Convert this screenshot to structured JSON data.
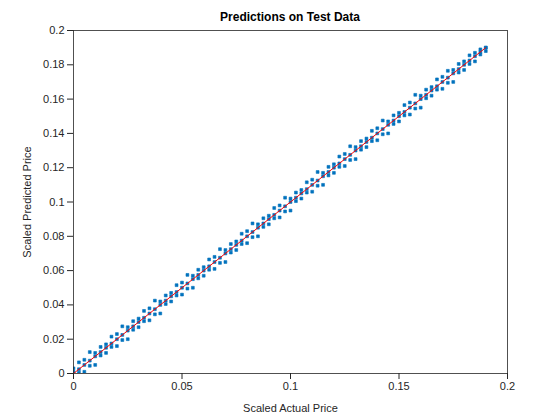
{
  "chart_data": {
    "type": "scatter",
    "title": "Predictions on Test Data",
    "xlabel": "Scaled Actual Price",
    "ylabel": "Scaled Predicted Price",
    "xlim": [
      0,
      0.2
    ],
    "ylim": [
      0,
      0.2
    ],
    "xticks": [
      0,
      0.05,
      0.1,
      0.15,
      0.2
    ],
    "yticks": [
      0,
      0.02,
      0.04,
      0.06,
      0.08,
      0.1,
      0.12,
      0.14,
      0.16,
      0.18,
      0.2
    ],
    "grid": false,
    "series": [
      {
        "type": "scatter",
        "color": "#0072bd",
        "marker": "square",
        "x": [
          0,
          0.0025,
          0.005,
          0.0075,
          0.01,
          0.0125,
          0.015,
          0.0175,
          0.02,
          0.0225,
          0.025,
          0.0275,
          0.03,
          0.0325,
          0.035,
          0.0375,
          0.04,
          0.0425,
          0.045,
          0.0475,
          0.05,
          0.0525,
          0.055,
          0.0575,
          0.06,
          0.0625,
          0.065,
          0.0675,
          0.07,
          0.0725,
          0.075,
          0.0775,
          0.08,
          0.0825,
          0.085,
          0.0875,
          0.09,
          0.0925,
          0.095,
          0.0975,
          0.1,
          0.1025,
          0.105,
          0.1075,
          0.11,
          0.1125,
          0.115,
          0.1175,
          0.12,
          0.1225,
          0.125,
          0.1275,
          0.13,
          0.1325,
          0.135,
          0.1375,
          0.14,
          0.1425,
          0.145,
          0.1475,
          0.15,
          0.1525,
          0.155,
          0.1575,
          0.16,
          0.1625,
          0.165,
          0.1675,
          0.17,
          0.1725,
          0.175,
          0.1775,
          0.18,
          0.1825,
          0.185,
          0.1875,
          0.19,
          0,
          0.0025,
          0.005,
          0.0075,
          0.01,
          0.0125,
          0.015,
          0.0175,
          0.02,
          0.0225,
          0.025,
          0.0275,
          0.03,
          0.0325,
          0.035,
          0.0375,
          0.04,
          0.0425,
          0.045,
          0.0475,
          0.05,
          0.0525,
          0.055,
          0.0575,
          0.06,
          0.0625,
          0.065,
          0.0675,
          0.07,
          0.0725,
          0.075,
          0.0775,
          0.08,
          0.0825,
          0.085,
          0.0875,
          0.09,
          0.0925,
          0.095,
          0.0975,
          0.1,
          0.1025,
          0.105,
          0.1075,
          0.11,
          0.1125,
          0.115,
          0.1175,
          0.12,
          0.1225,
          0.125,
          0.1275,
          0.13,
          0.1325,
          0.135,
          0.1375,
          0.14,
          0.1425,
          0.145,
          0.1475,
          0.15,
          0.1525,
          0.155,
          0.1575,
          0.16,
          0.1625,
          0.165,
          0.1675,
          0.17,
          0.1725,
          0.175,
          0.1775,
          0.18,
          0.1825,
          0.185,
          0.1875,
          0.19,
          0,
          0.0025,
          0.005,
          0.0075,
          0.01,
          0.0125,
          0.015,
          0.0175,
          0.02,
          0.0225,
          0.025,
          0.0275,
          0.03,
          0.0325,
          0.035,
          0.0375,
          0.04,
          0.0425,
          0.045,
          0.0475,
          0.05,
          0.0525,
          0.055,
          0.0575,
          0.06,
          0.0625,
          0.065,
          0.0675,
          0.07,
          0.0725,
          0.075,
          0.0775,
          0.08,
          0.0825,
          0.085,
          0.0875,
          0.09,
          0.0925,
          0.095,
          0.0975,
          0.1,
          0.1025,
          0.105,
          0.1075,
          0.11,
          0.1125,
          0.115,
          0.1175,
          0.12,
          0.1225,
          0.125,
          0.1275,
          0.13,
          0.1325,
          0.135,
          0.1375,
          0.14,
          0.1425,
          0.145,
          0.1475,
          0.15,
          0.1525,
          0.155,
          0.1575,
          0.16,
          0.1625,
          0.165,
          0.1675,
          0.17,
          0.1725,
          0.175,
          0.1775,
          0.18,
          0.1825,
          0.185,
          0.1875,
          0.19
        ],
        "values": [
          0.003,
          0.0065,
          0.008,
          0.0125,
          0.012,
          0.0155,
          0.017,
          0.0215,
          0.023,
          0.0275,
          0.027,
          0.0305,
          0.032,
          0.0365,
          0.038,
          0.0425,
          0.042,
          0.0455,
          0.047,
          0.0515,
          0.053,
          0.0575,
          0.057,
          0.0605,
          0.062,
          0.0665,
          0.068,
          0.0725,
          0.072,
          0.0755,
          0.077,
          0.0815,
          0.083,
          0.0875,
          0.087,
          0.0905,
          0.092,
          0.0965,
          0.098,
          0.1025,
          0.102,
          0.1055,
          0.107,
          0.1115,
          0.113,
          0.1175,
          0.117,
          0.1205,
          0.122,
          0.1265,
          0.128,
          0.1325,
          0.132,
          0.1355,
          0.137,
          0.1415,
          0.143,
          0.1475,
          0.147,
          0.1505,
          0.152,
          0.1565,
          0.158,
          0.1625,
          0.162,
          0.1655,
          0.167,
          0.1715,
          0.173,
          0.1765,
          0.177,
          0.1805,
          0.182,
          0.1855,
          0.187,
          0.189,
          0.19,
          0.001,
          0.0005,
          0.001,
          0.0045,
          0.005,
          0.0105,
          0.012,
          0.0155,
          0.016,
          0.0195,
          0.02,
          0.0255,
          0.027,
          0.0305,
          0.031,
          0.0345,
          0.035,
          0.0405,
          0.042,
          0.0455,
          0.046,
          0.0495,
          0.05,
          0.0555,
          0.057,
          0.0605,
          0.061,
          0.0645,
          0.065,
          0.0705,
          0.072,
          0.0755,
          0.076,
          0.0795,
          0.08,
          0.0855,
          0.087,
          0.0905,
          0.091,
          0.0945,
          0.095,
          0.1005,
          0.102,
          0.1055,
          0.106,
          0.1095,
          0.11,
          0.1155,
          0.117,
          0.1205,
          0.121,
          0.1245,
          0.125,
          0.1305,
          0.132,
          0.1355,
          0.136,
          0.1395,
          0.14,
          0.1455,
          0.147,
          0.1505,
          0.151,
          0.1545,
          0.155,
          0.1605,
          0.162,
          0.1655,
          0.166,
          0.1695,
          0.17,
          0.1755,
          0.177,
          0.1805,
          0.182,
          0.186,
          0.188,
          0,
          0.0025,
          0.005,
          0.0075,
          0.01,
          0.0125,
          0.015,
          0.0175,
          0.02,
          0.0225,
          0.025,
          0.0275,
          0.03,
          0.0325,
          0.035,
          0.0375,
          0.04,
          0.0425,
          0.045,
          0.0475,
          0.05,
          0.0525,
          0.055,
          0.0575,
          0.06,
          0.0625,
          0.065,
          0.0675,
          0.07,
          0.0725,
          0.075,
          0.0775,
          0.08,
          0.0825,
          0.085,
          0.0875,
          0.09,
          0.0925,
          0.095,
          0.0975,
          0.1,
          0.1025,
          0.105,
          0.1075,
          0.11,
          0.1125,
          0.115,
          0.1175,
          0.12,
          0.1225,
          0.125,
          0.1275,
          0.13,
          0.1325,
          0.135,
          0.1375,
          0.14,
          0.1425,
          0.145,
          0.1475,
          0.15,
          0.1525,
          0.155,
          0.1575,
          0.16,
          0.1625,
          0.165,
          0.1675,
          0.17,
          0.1725,
          0.175,
          0.1775,
          0.18,
          0.1825,
          0.185,
          0.1875,
          0.19
        ]
      },
      {
        "type": "line",
        "color": "#ff0000",
        "line_style": "solid",
        "x": [
          0,
          0.19
        ],
        "values": [
          0,
          0.19
        ]
      }
    ]
  }
}
